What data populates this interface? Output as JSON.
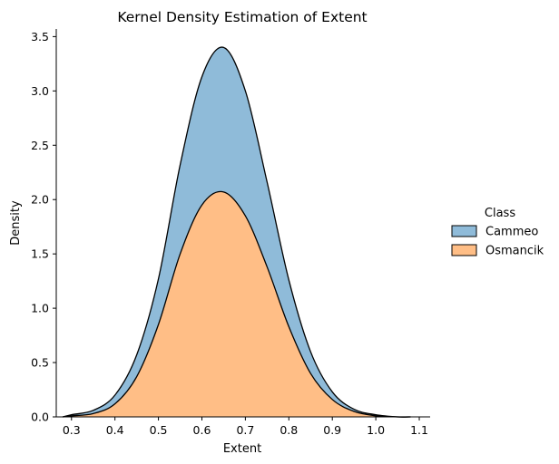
{
  "chart_data": {
    "type": "area",
    "stacked": true,
    "title": "Kernel Density Estimation of Extent",
    "xlabel": "Extent",
    "ylabel": "Density",
    "xlim": [
      0.265,
      1.125
    ],
    "ylim": [
      0,
      3.57
    ],
    "xticks": [
      0.3,
      0.4,
      0.5,
      0.6,
      0.7,
      0.8,
      0.9,
      1.0,
      1.1
    ],
    "xtick_labels": [
      "0.3",
      "0.4",
      "0.5",
      "0.6",
      "0.7",
      "0.8",
      "0.9",
      "1.0",
      "1.1"
    ],
    "yticks": [
      0.0,
      0.5,
      1.0,
      1.5,
      2.0,
      2.5,
      3.0,
      3.5
    ],
    "ytick_labels": [
      "0.0",
      "0.5",
      "1.0",
      "1.5",
      "2.0",
      "2.5",
      "3.0",
      "3.5"
    ],
    "grid": false,
    "legend": {
      "title": "Class",
      "placement": "right",
      "entries": [
        "Cammeo",
        "Osmancik"
      ]
    },
    "x": [
      0.28,
      0.3,
      0.35,
      0.4,
      0.45,
      0.5,
      0.55,
      0.6,
      0.65,
      0.7,
      0.75,
      0.8,
      0.85,
      0.9,
      0.95,
      1.0,
      1.05,
      1.08
    ],
    "series": [
      {
        "name": "Osmancik",
        "color": "#ffbe86",
        "values": [
          0.0,
          0.01,
          0.03,
          0.12,
          0.37,
          0.85,
          1.5,
          1.95,
          2.07,
          1.85,
          1.38,
          0.83,
          0.4,
          0.16,
          0.05,
          0.01,
          0.0,
          0.0
        ]
      },
      {
        "name": "Cammeo",
        "color": "#8fbbd9",
        "values": [
          0.0,
          0.01,
          0.03,
          0.08,
          0.2,
          0.42,
          0.82,
          1.18,
          1.33,
          1.15,
          0.78,
          0.43,
          0.2,
          0.07,
          0.02,
          0.01,
          0.0,
          0.0
        ]
      }
    ]
  }
}
